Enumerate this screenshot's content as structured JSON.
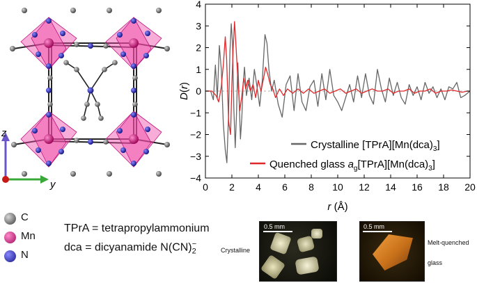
{
  "structure": {
    "axes": {
      "z": "z",
      "y": "y"
    },
    "atom_legend": [
      {
        "symbol": "C",
        "color": "#4a4a4a"
      },
      {
        "symbol": "Mn",
        "color": "#d4107a"
      },
      {
        "symbol": "N",
        "color": "#2020b0"
      }
    ],
    "definitions": {
      "tpra": "TPrA = tetrapropylammonium",
      "dca": "dca = dicyanamide N(CN)",
      "dca_sub": "2",
      "dca_sup": "−"
    }
  },
  "photos": {
    "crystalline": {
      "caption": "Crystalline",
      "scale": "0.5 mm"
    },
    "glass": {
      "caption_line1": "Melt-quenched",
      "caption_line2": "glass",
      "scale": "0.5 mm"
    }
  },
  "chart_data": {
    "type": "line",
    "xlabel": "r (Å)",
    "ylabel": "D(r)",
    "xlim": [
      0,
      20
    ],
    "ylim": [
      -4,
      4
    ],
    "xticks": [
      0,
      2,
      4,
      6,
      8,
      10,
      12,
      14,
      16,
      18,
      20
    ],
    "yticks": [
      -4,
      -3,
      -2,
      -1,
      0,
      1,
      2,
      3,
      4
    ],
    "series": [
      {
        "name": "Crystalline [TPrA][Mn(dca)3]",
        "label_main": "Crystalline [TPrA][Mn(dca)",
        "label_sub": "3",
        "label_end": "]",
        "color": "#666666",
        "x": [
          0,
          0.4,
          0.6,
          0.75,
          0.9,
          1.05,
          1.2,
          1.35,
          1.5,
          1.62,
          1.75,
          1.85,
          1.95,
          2.05,
          2.15,
          2.25,
          2.35,
          2.45,
          2.55,
          2.65,
          2.75,
          2.85,
          2.95,
          3.1,
          3.3,
          3.5,
          3.7,
          3.9,
          4.1,
          4.3,
          4.5,
          4.65,
          4.8,
          5.0,
          5.2,
          5.5,
          5.8,
          6.1,
          6.4,
          6.7,
          7.0,
          7.3,
          7.6,
          7.9,
          8.2,
          8.5,
          8.8,
          9.1,
          9.4,
          9.7,
          10.0,
          10.3,
          10.6,
          10.9,
          11.2,
          11.5,
          11.8,
          12.1,
          12.4,
          12.7,
          13.0,
          13.3,
          13.6,
          13.9,
          14.2,
          14.5,
          14.8,
          15.1,
          15.4,
          15.7,
          16.0,
          16.3,
          16.6,
          16.9,
          17.2,
          17.5,
          17.8,
          18.1,
          18.4,
          18.7,
          19.0,
          19.3,
          19.6,
          20
        ],
        "y": [
          0,
          0,
          -0.4,
          1.2,
          -0.3,
          2.1,
          1.0,
          -1.5,
          -2.7,
          -3.3,
          -1.0,
          1.8,
          3.1,
          2.2,
          -0.8,
          -2.6,
          -1.0,
          1.3,
          -0.5,
          -2.2,
          -1.2,
          0.3,
          1.1,
          -0.2,
          0.6,
          -0.4,
          1.0,
          0.2,
          -0.7,
          0.5,
          2.6,
          2.2,
          1.0,
          0.0,
          0.5,
          -0.6,
          -1.2,
          0.3,
          0.7,
          -0.9,
          0.8,
          -0.5,
          -0.9,
          0.2,
          0.5,
          -0.7,
          0.8,
          -0.4,
          1.0,
          -0.2,
          -0.5,
          -0.9,
          -0.3,
          0.3,
          -0.5,
          0.7,
          -0.3,
          0.8,
          -0.2,
          -0.6,
          1.0,
          0.1,
          -0.5,
          0.6,
          -0.2,
          0.4,
          -0.3,
          -0.6,
          0.3,
          -0.2,
          0.2,
          -0.4,
          0.4,
          -0.1,
          0.2,
          -0.3,
          0.1,
          -0.4,
          0.2,
          0.1,
          0.4,
          -0.3,
          -0.2,
          0.0
        ]
      },
      {
        "name": "Quenched glass ag[TPrA][Mn(dca)3]",
        "label_main": "Quenched glass ",
        "label_italic": "a",
        "label_sub_g": "g",
        "label_mid": "[TPrA][Mn(dca)",
        "label_sub": "3",
        "label_end": "]",
        "color": "#e0282a",
        "x": [
          0,
          0.5,
          0.8,
          1.0,
          1.2,
          1.35,
          1.5,
          1.6,
          1.75,
          1.9,
          2.0,
          2.1,
          2.2,
          2.3,
          2.45,
          2.6,
          2.75,
          2.9,
          3.05,
          3.2,
          3.4,
          3.6,
          3.8,
          4.0,
          4.2,
          4.4,
          4.55,
          4.7,
          4.9,
          5.1,
          5.3,
          5.6,
          5.9,
          6.2,
          6.6,
          7.0,
          7.4,
          7.8,
          8.2,
          8.6,
          9.0,
          9.4,
          9.8,
          10.2,
          10.6,
          11.0,
          11.4,
          11.8,
          12.2,
          12.6,
          13.0,
          13.4,
          13.8,
          14.2,
          14.6,
          15.0,
          15.4,
          15.8,
          16.2,
          16.6,
          17.0,
          17.4,
          17.8,
          18.2,
          18.6,
          19.0,
          19.4,
          19.8,
          20
        ],
        "y": [
          0,
          0,
          -0.2,
          -0.5,
          0.2,
          1.2,
          2.5,
          1.5,
          -1.4,
          -2.0,
          0.3,
          2.0,
          3.2,
          2.2,
          0.5,
          -0.9,
          -0.2,
          0.6,
          0.1,
          0.5,
          0.0,
          0.3,
          -0.3,
          0.5,
          0.0,
          0.6,
          1.1,
          0.8,
          0.3,
          0.1,
          -0.3,
          0.1,
          -0.2,
          0.1,
          -0.1,
          0.1,
          -0.1,
          0.1,
          -0.1,
          0.0,
          0.1,
          -0.1,
          0.0,
          0.1,
          -0.1,
          0.0,
          0.1,
          -0.1,
          0.0,
          0.1,
          0.0,
          0.0,
          0.1,
          -0.1,
          0.0,
          0.0,
          0.1,
          -0.1,
          0.0,
          0.0,
          0.1,
          -0.1,
          0.0,
          0.0,
          0.05,
          0.0,
          -0.05,
          0.0,
          0.0
        ]
      }
    ]
  }
}
